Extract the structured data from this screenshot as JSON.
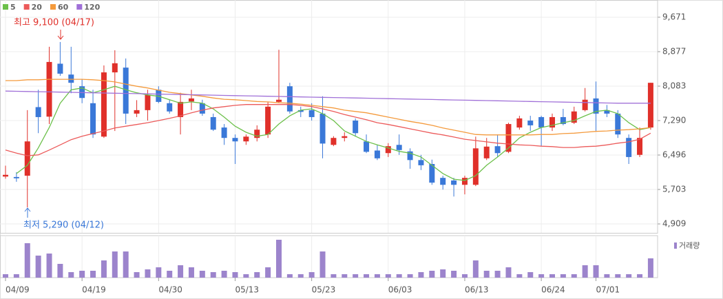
{
  "chart_data": {
    "type": "candlestick",
    "categories": [
      "04/09",
      null,
      null,
      null,
      null,
      null,
      null,
      "04/19",
      null,
      null,
      null,
      null,
      null,
      null,
      "04/30",
      null,
      null,
      null,
      null,
      null,
      null,
      "05/13",
      null,
      null,
      null,
      null,
      null,
      null,
      "05/23",
      null,
      null,
      null,
      null,
      null,
      null,
      "06/03",
      null,
      null,
      null,
      null,
      null,
      null,
      "06/13",
      null,
      null,
      null,
      null,
      null,
      null,
      "06/24",
      null,
      null,
      null,
      null,
      "07/01",
      null,
      null,
      null,
      null,
      null
    ],
    "open": [
      6000,
      5990,
      6020,
      7600,
      7380,
      8600,
      8350,
      8080,
      7690,
      6920,
      8400,
      8510,
      7450,
      7530,
      8000,
      7690,
      7370,
      7730,
      7690,
      7370,
      7130,
      6890,
      6810,
      6890,
      6970,
      7720,
      8080,
      7530,
      7530,
      7450,
      6730,
      6890,
      7290,
      6810,
      6600,
      6540,
      6730,
      6580,
      6380,
      6290,
      5970,
      5910,
      5810,
      5810,
      6420,
      6700,
      6570,
      7130,
      7290,
      7370,
      7130,
      7370,
      7240,
      7530,
      7800,
      7530,
      7450,
      6890,
      6500,
      7130
    ],
    "high": [
      6250,
      6100,
      7530,
      8000,
      8990,
      9100,
      8990,
      8240,
      8000,
      8560,
      8910,
      8720,
      7760,
      8000,
      8080,
      7770,
      7930,
      8000,
      7770,
      7450,
      7210,
      6970,
      6970,
      7180,
      7720,
      8920,
      8160,
      7610,
      7690,
      7850,
      6930,
      7020,
      7340,
      6970,
      6730,
      6770,
      6970,
      6650,
      6500,
      6390,
      6020,
      5970,
      6020,
      6920,
      6890,
      6970,
      7240,
      7400,
      7400,
      7400,
      7450,
      7560,
      7610,
      8040,
      8190,
      7650,
      7530,
      6970,
      7130,
      8160
    ],
    "low": [
      5950,
      5880,
      5290,
      7000,
      7210,
      8320,
      7920,
      7690,
      6890,
      6890,
      7050,
      7210,
      7370,
      7290,
      7690,
      7450,
      6970,
      7530,
      7400,
      7050,
      6730,
      6290,
      6730,
      6810,
      6890,
      7690,
      7450,
      7370,
      7290,
      6420,
      6700,
      6810,
      6920,
      6540,
      6380,
      6450,
      6500,
      6180,
      6150,
      5810,
      5700,
      5540,
      5590,
      5780,
      6380,
      6450,
      6540,
      7080,
      7050,
      6700,
      7050,
      7180,
      7210,
      7500,
      7050,
      7370,
      6890,
      6290,
      6450,
      7080
    ],
    "close": [
      6040,
      5960,
      6810,
      7370,
      8640,
      8370,
      8160,
      7810,
      6970,
      8400,
      8610,
      7450,
      7530,
      7880,
      7720,
      7500,
      7720,
      7800,
      7450,
      7080,
      6890,
      6810,
      6920,
      7080,
      7610,
      7770,
      7500,
      7490,
      7370,
      6760,
      6890,
      6930,
      7000,
      6570,
      6420,
      6700,
      6610,
      6380,
      6260,
      5860,
      5810,
      5810,
      5970,
      6650,
      6690,
      6540,
      7210,
      7340,
      7180,
      7130,
      7370,
      7210,
      7500,
      7770,
      7450,
      7450,
      6970,
      6450,
      6890,
      8160
    ],
    "up_color": "#e0302a",
    "down_color": "#3a78d8",
    "series": [
      {
        "name": "5",
        "color": "#6cc04a",
        "values": [
          null,
          6070,
          6260,
          6660,
          7130,
          7690,
          8000,
          8040,
          7930,
          8000,
          8080,
          8000,
          7930,
          7880,
          7850,
          7770,
          7690,
          7720,
          7690,
          7560,
          7370,
          7160,
          7020,
          6930,
          6970,
          7210,
          7400,
          7530,
          7560,
          7450,
          7290,
          7050,
          6930,
          6810,
          6730,
          6660,
          6580,
          6540,
          6450,
          6260,
          6070,
          5940,
          5910,
          6020,
          6260,
          6450,
          6660,
          6890,
          7020,
          7130,
          7180,
          7240,
          7290,
          7400,
          7500,
          7530,
          7450,
          7240,
          7080,
          7130
        ]
      },
      {
        "name": "20",
        "color": "#ec5a5a",
        "values": [
          6610,
          6540,
          6480,
          6500,
          6610,
          6730,
          6850,
          6930,
          6990,
          7050,
          7120,
          7160,
          7200,
          7240,
          7290,
          7340,
          7400,
          7470,
          7530,
          7580,
          7610,
          7640,
          7660,
          7660,
          7660,
          7660,
          7660,
          7640,
          7610,
          7560,
          7500,
          7430,
          7370,
          7310,
          7240,
          7200,
          7150,
          7100,
          7050,
          7000,
          6960,
          6910,
          6860,
          6830,
          6800,
          6770,
          6750,
          6730,
          6720,
          6700,
          6690,
          6670,
          6670,
          6690,
          6700,
          6730,
          6770,
          6800,
          6860,
          7000
        ]
      },
      {
        "name": "60",
        "color": "#f49a3c",
        "values": [
          8210,
          8210,
          8230,
          8230,
          8240,
          8240,
          8240,
          8240,
          8230,
          8210,
          8180,
          8130,
          8080,
          8040,
          7990,
          7940,
          7910,
          7880,
          7850,
          7810,
          7780,
          7770,
          7750,
          7730,
          7720,
          7700,
          7690,
          7670,
          7640,
          7610,
          7580,
          7530,
          7500,
          7470,
          7420,
          7370,
          7320,
          7270,
          7230,
          7180,
          7120,
          7070,
          7020,
          6970,
          6960,
          6960,
          6960,
          6960,
          6960,
          6970,
          6970,
          6990,
          7000,
          7020,
          7040,
          7050,
          7070,
          7080,
          7100,
          7130
        ]
      },
      {
        "name": "120",
        "color": "#a070d8",
        "values": [
          7970,
          7965,
          7960,
          7955,
          7950,
          7945,
          7940,
          7935,
          7930,
          7925,
          7920,
          7915,
          7910,
          7905,
          7900,
          7895,
          7890,
          7885,
          7880,
          7875,
          7870,
          7865,
          7860,
          7855,
          7850,
          7845,
          7840,
          7835,
          7830,
          7825,
          7820,
          7815,
          7810,
          7805,
          7800,
          7795,
          7790,
          7785,
          7780,
          7775,
          7770,
          7765,
          7760,
          7755,
          7750,
          7745,
          7740,
          7735,
          7730,
          7725,
          7720,
          7715,
          7710,
          7705,
          7700,
          7695,
          7690,
          7690,
          7690,
          7690
        ]
      }
    ],
    "volume": {
      "name": "거래량",
      "color": "#9c84cc",
      "ylim": [
        0,
        600000
      ],
      "values": [
        50000,
        50000,
        500000,
        320000,
        350000,
        200000,
        80000,
        100000,
        100000,
        250000,
        380000,
        380000,
        80000,
        120000,
        150000,
        100000,
        180000,
        150000,
        100000,
        80000,
        100000,
        80000,
        50000,
        80000,
        150000,
        550000,
        50000,
        50000,
        80000,
        380000,
        50000,
        50000,
        50000,
        50000,
        50000,
        50000,
        50000,
        50000,
        80000,
        100000,
        120000,
        100000,
        50000,
        250000,
        100000,
        100000,
        150000,
        50000,
        80000,
        50000,
        50000,
        50000,
        50000,
        180000,
        180000,
        50000,
        50000,
        50000,
        50000,
        280000
      ]
    },
    "ylim": [
      4703,
      9988
    ],
    "yticks": [
      {
        "value": 4909,
        "label": "4,909"
      },
      {
        "value": 5703,
        "label": "5,703"
      },
      {
        "value": 6496,
        "label": "6,496"
      },
      {
        "value": 7290,
        "label": "7,290"
      },
      {
        "value": 8083,
        "label": "8,083"
      },
      {
        "value": 8877,
        "label": "8,877"
      },
      {
        "value": 9671,
        "label": "9,671"
      }
    ],
    "grid": true,
    "annotations": [
      {
        "text": "최고 9,100 (04/17)"
      },
      {
        "text": "최저 5,290 (04/12)"
      }
    ]
  }
}
